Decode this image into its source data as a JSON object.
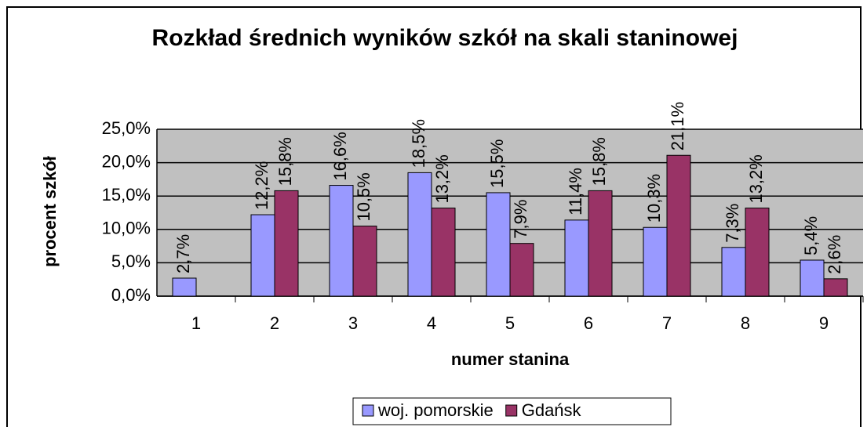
{
  "chart_data": {
    "type": "bar",
    "title": "Rozkład średnich wyników szkół na skali staninowej",
    "x_label": "numer stanina",
    "y_label": "procent szkół",
    "categories": [
      "1",
      "2",
      "3",
      "4",
      "5",
      "6",
      "7",
      "8",
      "9"
    ],
    "series": [
      {
        "name": "woj. pomorskie",
        "color": "#9999ff",
        "values": [
          2.7,
          12.2,
          16.6,
          18.5,
          15.5,
          11.4,
          10.3,
          7.3,
          5.4
        ],
        "value_labels": [
          "2,7%",
          "12,2%",
          "16,6%",
          "18,5%",
          "15,5%",
          "11,4%",
          "10,3%",
          "7,3%",
          "5,4%"
        ]
      },
      {
        "name": "Gdańsk",
        "color": "#993366",
        "values": [
          null,
          15.8,
          10.5,
          13.2,
          7.9,
          15.8,
          21.1,
          13.2,
          2.6
        ],
        "value_labels": [
          null,
          "15,8%",
          "10,5%",
          "13,2%",
          "7,9%",
          "15,8%",
          "21,1%",
          "13,2%",
          "2,6%"
        ]
      }
    ],
    "ylim": [
      0,
      25
    ],
    "yticks": [
      {
        "value": 0,
        "label": "0,0%"
      },
      {
        "value": 5,
        "label": "5,0%"
      },
      {
        "value": 10,
        "label": "10,0%"
      },
      {
        "value": 15,
        "label": "15,0%"
      },
      {
        "value": 20,
        "label": "20,0%"
      },
      {
        "value": 25,
        "label": "25,0%"
      }
    ],
    "grid": true,
    "legend": "bottom"
  }
}
